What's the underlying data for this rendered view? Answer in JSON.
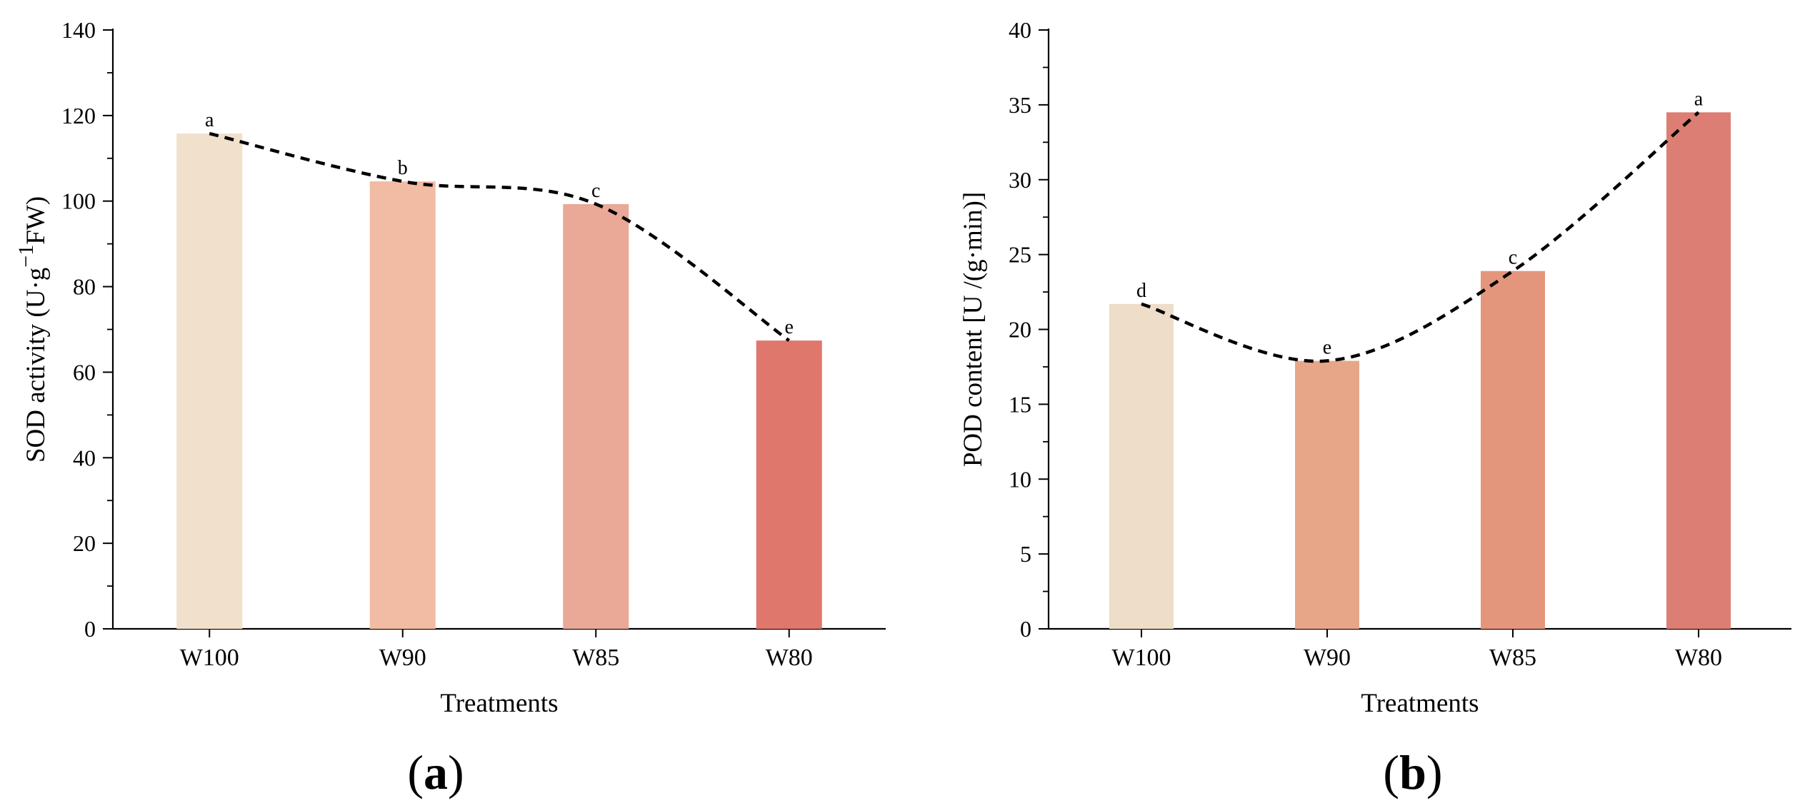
{
  "chart_data": [
    {
      "type": "bar",
      "panel_label": "a",
      "categories": [
        "W100",
        "W90",
        "W85",
        "W80"
      ],
      "values": [
        115.8,
        104.6,
        99.3,
        67.4
      ],
      "significance": [
        "a",
        "b",
        "c",
        "e"
      ],
      "trend_line": "dashed curve through bar tops",
      "xlabel": "Treatments",
      "ylabel": {
        "prefix": "SOD activity (U·g",
        "sup": "−1",
        "suffix": "FW)"
      },
      "ylim": [
        0,
        140
      ],
      "yticks": [
        0,
        20,
        40,
        60,
        80,
        100,
        120,
        140
      ],
      "colors": [
        "#F0E0CC",
        "#F2BBA3",
        "#EAA896",
        "#DF776C"
      ],
      "grid": false
    },
    {
      "type": "bar",
      "panel_label": "b",
      "categories": [
        "W100",
        "W90",
        "W85",
        "W80"
      ],
      "values": [
        21.7,
        17.9,
        23.9,
        34.5
      ],
      "significance": [
        "d",
        "e",
        "c",
        "a"
      ],
      "trend_line": "dashed curve through bar tops",
      "xlabel": "Treatments",
      "ylabel": {
        "prefix": "POD  content [U /(g·min)]",
        "sup": "",
        "suffix": ""
      },
      "ylim": [
        0,
        40
      ],
      "yticks": [
        0,
        5,
        10,
        15,
        20,
        25,
        30,
        35,
        40
      ],
      "colors": [
        "#EEDDC8",
        "#E8A689",
        "#E4967C",
        "#DC7E73"
      ],
      "grid": false
    }
  ]
}
